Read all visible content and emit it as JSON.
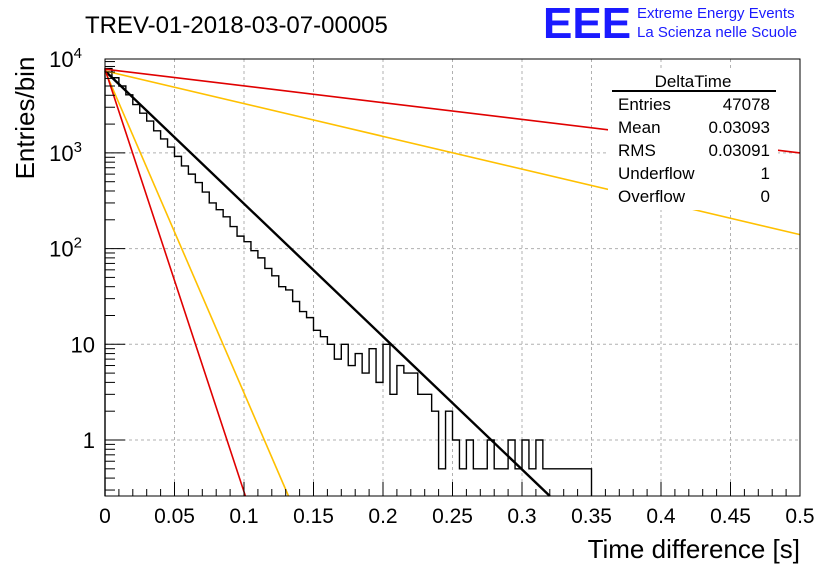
{
  "page": {
    "title": "TREV-01-2018-03-07-00005",
    "logo": {
      "letters": "EEE",
      "line1": "Extreme Energy Events",
      "line2": "La Scienza nelle Scuole",
      "color": "#1a1aff"
    }
  },
  "stats": {
    "header": "DeltaTime",
    "rows": [
      {
        "label": "Entries",
        "value": "47078"
      },
      {
        "label": "Mean",
        "value": "0.03093"
      },
      {
        "label": "RMS",
        "value": "0.03091"
      },
      {
        "label": "Underflow",
        "value": "1"
      },
      {
        "label": "Overflow",
        "value": "0"
      }
    ]
  },
  "chart_data": {
    "type": "line",
    "title": "TREV-01-2018-03-07-00005",
    "xlabel": "Time difference [s]",
    "ylabel": "Entries/bin",
    "xlim": [
      0,
      0.5
    ],
    "ylim": [
      0.25,
      12000
    ],
    "y_scale": "log",
    "grid": true,
    "x_ticks": [
      "0",
      "0.05",
      "0.1",
      "0.15",
      "0.2",
      "0.25",
      "0.3",
      "0.35",
      "0.4",
      "0.45",
      "0.5"
    ],
    "y_ticks": [
      {
        "value": 1,
        "base": "1",
        "exp": ""
      },
      {
        "value": 10,
        "base": "10",
        "exp": ""
      },
      {
        "value": 100,
        "base": "10",
        "exp": "2"
      },
      {
        "value": 1000,
        "base": "10",
        "exp": "3"
      },
      {
        "value": 10000,
        "base": "10",
        "exp": "4"
      }
    ],
    "histogram": {
      "name": "DeltaTime",
      "bin_width": 0.005,
      "bin_start": 0,
      "counts": [
        7600,
        6100,
        5000,
        4050,
        3200,
        2600,
        2150,
        1700,
        1400,
        1150,
        920,
        730,
        600,
        490,
        390,
        300,
        255,
        215,
        170,
        135,
        118,
        95,
        80,
        62,
        52,
        40,
        37,
        28,
        22,
        19,
        14,
        12,
        10,
        7,
        10,
        6,
        8,
        5,
        9,
        4,
        10,
        3,
        6,
        5,
        5,
        3,
        3,
        2,
        0.5,
        2,
        1,
        0.5,
        1,
        0.5,
        0.5,
        1,
        0.5,
        0.5,
        1,
        0.5,
        1,
        0.5,
        1,
        0.5,
        0.5,
        0.5,
        0.5,
        0.5,
        0.5,
        0.5
      ]
    },
    "series": [
      {
        "color": "#000000",
        "points": [
          [
            0,
            7200
          ],
          [
            0.32,
            0.25
          ]
        ]
      },
      {
        "color": "#ffc000",
        "points": [
          [
            0,
            7200
          ],
          [
            0.5,
            140
          ]
        ]
      },
      {
        "color": "#ffc000",
        "points": [
          [
            0,
            7200
          ],
          [
            0.132,
            0.25
          ]
        ]
      },
      {
        "color": "#e00000",
        "points": [
          [
            0,
            7500
          ],
          [
            0.5,
            1000
          ]
        ]
      },
      {
        "color": "#e00000",
        "points": [
          [
            0,
            7500
          ],
          [
            0.101,
            0.25
          ]
        ]
      }
    ]
  }
}
